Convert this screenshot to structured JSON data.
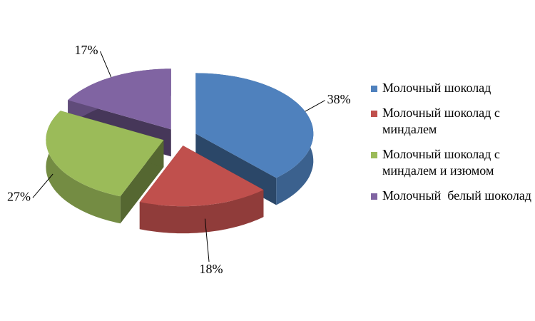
{
  "chart_data": {
    "type": "pie",
    "categories": [
      "Молочный шоколад",
      "Молочный шоколад с миндалем",
      "Молочный шоколад с миндалем и изюмом",
      "Молочный  белый шоколад"
    ],
    "values": [
      38,
      18,
      27,
      17
    ],
    "value_labels": [
      "38%",
      "18%",
      "27%",
      "17%"
    ],
    "colors": [
      "#4f81bd",
      "#c0504d",
      "#9bbb59",
      "#8064a2"
    ],
    "legend": "right"
  }
}
